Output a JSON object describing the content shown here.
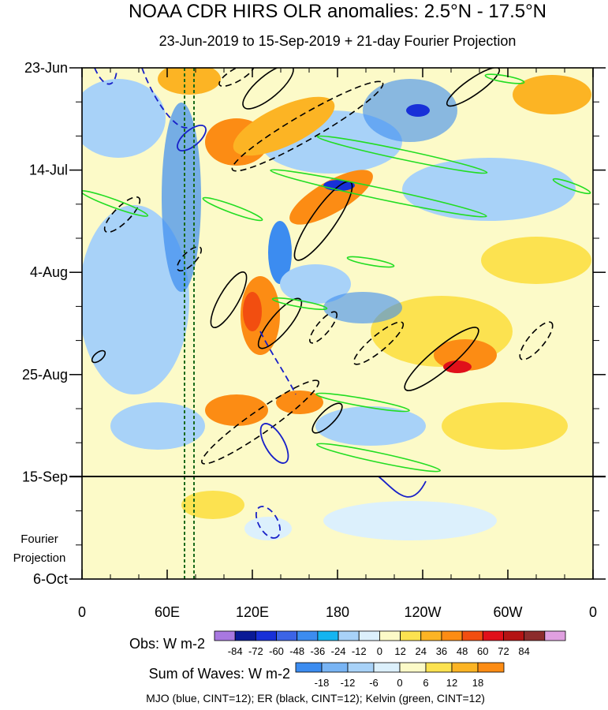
{
  "chart_data": {
    "type": "heatmap",
    "title": "NOAA CDR HIRS OLR anomalies: 2.5°N - 17.5°N",
    "subtitle": "23-Jun-2019 to 15-Sep-2019 + 21-day Fourier Projection",
    "x_ticks": [
      "0",
      "60E",
      "120E",
      "180",
      "120W",
      "60W",
      "0"
    ],
    "y_ticks": [
      "23-Jun",
      "14-Jul",
      "4-Aug",
      "25-Aug",
      "15-Sep",
      "6-Oct"
    ],
    "projection_label": [
      "Fourier",
      "Projection"
    ],
    "obs_colorbar": {
      "label": "Obs: W m-2",
      "ticks": [
        "-84",
        "-72",
        "-60",
        "-48",
        "-36",
        "-24",
        "-12",
        "0",
        "12",
        "24",
        "36",
        "48",
        "60",
        "72",
        "84"
      ],
      "colors": [
        "#a878e0",
        "#0a1a96",
        "#1830d8",
        "#3c64e6",
        "#3c8cf0",
        "#14b4f0",
        "#a8d2f8",
        "#dcf0fc",
        "#fcfac8",
        "#fce250",
        "#fcb424",
        "#fc8c14",
        "#f24e10",
        "#e0101a",
        "#b41414",
        "#8c2c2c",
        "#e0a0e0"
      ]
    },
    "waves_colorbar": {
      "label": "Sum of Waves: W m-2",
      "ticks": [
        "-18",
        "-12",
        "-6",
        "0",
        "6",
        "12",
        "18"
      ],
      "colors": [
        "#3c8cf0",
        "#78b4f4",
        "#a8d2f8",
        "#dcf0fc",
        "#fcfac8",
        "#fce250",
        "#fcb424",
        "#fc8c14"
      ]
    },
    "footer": "MJO (blue, CINT=12); ER (black, CINT=12); Kelvin (green, CINT=12)"
  }
}
